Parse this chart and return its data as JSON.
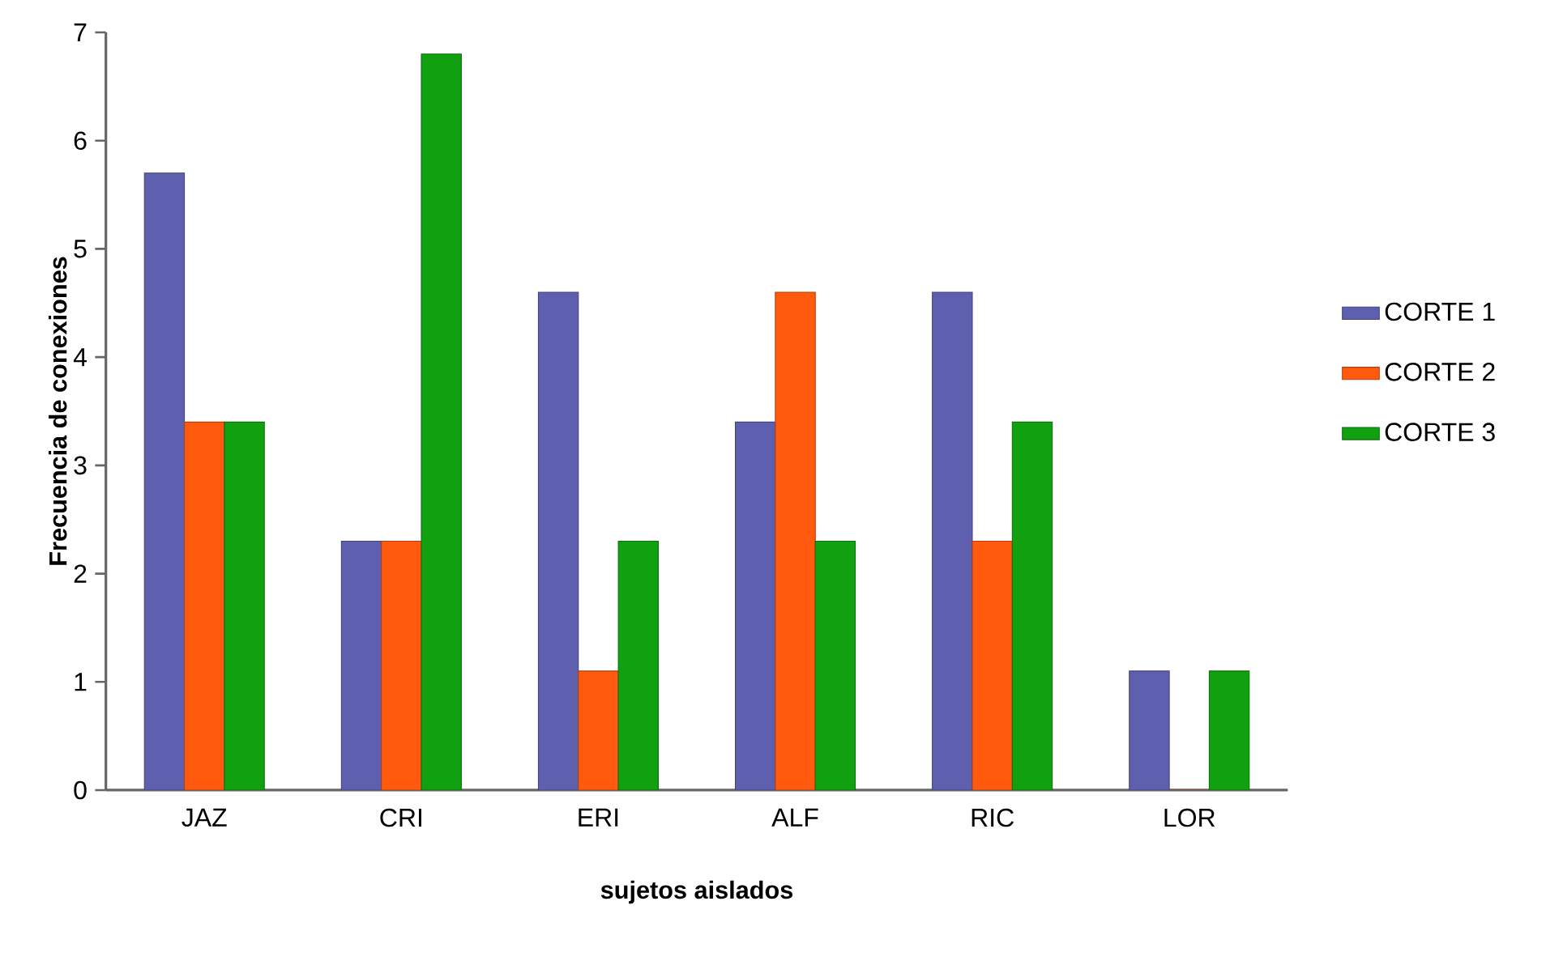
{
  "chart_data": {
    "type": "bar",
    "xlabel": "sujetos aislados",
    "ylabel": "Frecuencia de conexiones",
    "categories": [
      "JAZ",
      "CRI",
      "ERI",
      "ALF",
      "RIC",
      "LOR"
    ],
    "series": [
      {
        "name": "CORTE 1",
        "color": "#5e5fae",
        "values": [
          5.7,
          2.3,
          4.6,
          3.4,
          4.6,
          1.1
        ]
      },
      {
        "name": "CORTE 2",
        "color": "#ff5a0e",
        "values": [
          3.4,
          2.3,
          1.1,
          4.6,
          2.3,
          0
        ]
      },
      {
        "name": "CORTE 3",
        "color": "#10a010",
        "values": [
          3.4,
          6.8,
          2.3,
          2.3,
          3.4,
          1.1
        ]
      }
    ],
    "ylim": [
      0,
      7
    ],
    "yticks": [
      0,
      1,
      2,
      3,
      4,
      5,
      6,
      7
    ],
    "grid": false,
    "legend": "right"
  }
}
